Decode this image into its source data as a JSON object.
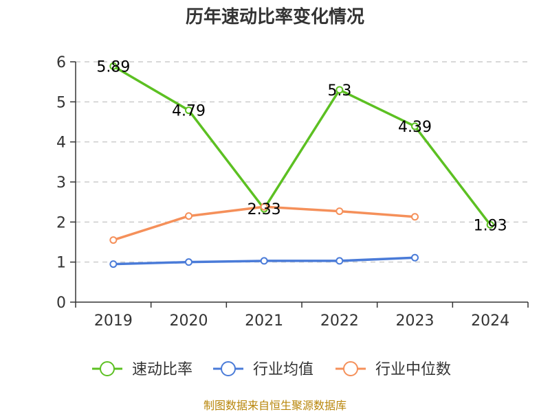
{
  "chart_data": {
    "type": "line",
    "title": "历年速动比率变化情况",
    "categories": [
      "2019",
      "2020",
      "2021",
      "2022",
      "2023",
      "2024"
    ],
    "ylim": [
      0,
      6
    ],
    "yticks": [
      0,
      1,
      2,
      3,
      4,
      5,
      6
    ],
    "grid": "horizontal-dashed",
    "legend_position": "bottom",
    "series": [
      {
        "name": "速动比率",
        "color": "#5cc022",
        "values": [
          5.89,
          4.79,
          2.33,
          5.3,
          4.39,
          1.93
        ],
        "labels": [
          "5.89",
          "4.79",
          "2.33",
          "5.3",
          "4.39",
          "1.93"
        ],
        "show_labels": true
      },
      {
        "name": "行业均值",
        "color": "#4a7bd8",
        "values": [
          0.95,
          1.0,
          1.03,
          1.03,
          1.11,
          null
        ],
        "show_labels": false
      },
      {
        "name": "行业中位数",
        "color": "#f5905a",
        "values": [
          1.55,
          2.15,
          2.38,
          2.27,
          2.13,
          null
        ],
        "show_labels": false
      }
    ],
    "source": "制图数据来自恒生聚源数据库"
  }
}
